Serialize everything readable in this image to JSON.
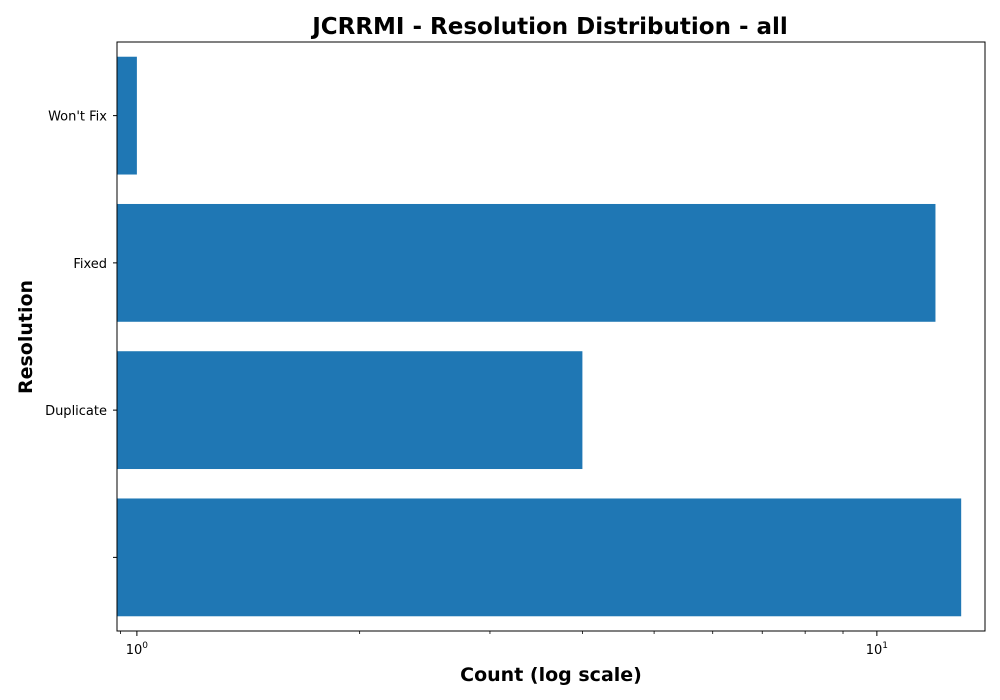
{
  "chart_data": {
    "type": "bar",
    "orientation": "horizontal",
    "title": "JCRRMI - Resolution Distribution - all",
    "xlabel": "Count (log scale)",
    "ylabel": "Resolution",
    "x_scale": "log",
    "xlim": [
      0.94,
      14
    ],
    "x_ticks": [
      {
        "value": 1,
        "base": "10",
        "exp": "0"
      },
      {
        "value": 10,
        "base": "10",
        "exp": "1"
      }
    ],
    "categories": [
      "",
      "Duplicate",
      "Fixed",
      "Won't Fix"
    ],
    "values": [
      13,
      4,
      12,
      1
    ],
    "bar_color": "#1f77b4",
    "grid": false,
    "legend": "none"
  }
}
